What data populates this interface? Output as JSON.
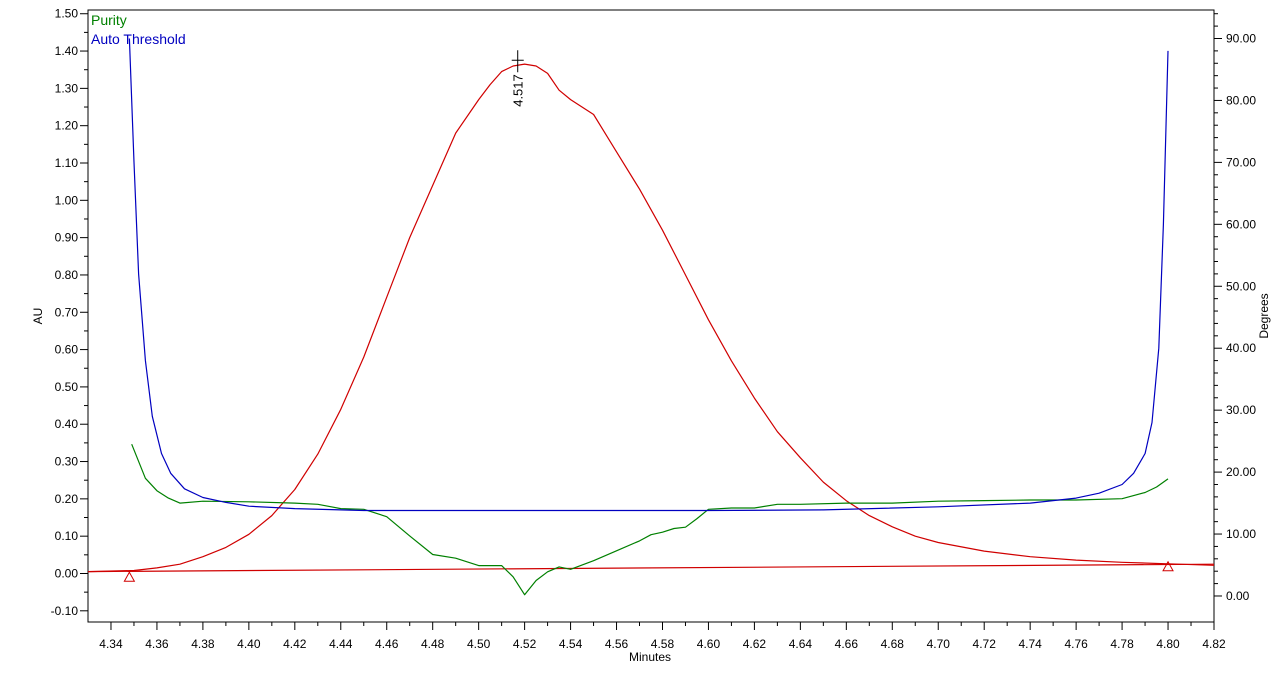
{
  "chart_data": {
    "type": "line",
    "xlabel": "Minutes",
    "ylabel": "AU",
    "y2label": "Degrees",
    "xlim": [
      4.33,
      4.82
    ],
    "ylim": [
      -0.13,
      1.51
    ],
    "y2lim": [
      -4.2,
      94.6
    ],
    "grid": false,
    "legend_position": "top-left",
    "x_ticks": [
      "4.34",
      "4.36",
      "4.38",
      "4.40",
      "4.42",
      "4.44",
      "4.46",
      "4.48",
      "4.50",
      "4.52",
      "4.54",
      "4.56",
      "4.58",
      "4.60",
      "4.62",
      "4.64",
      "4.66",
      "4.68",
      "4.70",
      "4.72",
      "4.74",
      "4.76",
      "4.78",
      "4.80",
      "4.82"
    ],
    "y_ticks": [
      "-0.10",
      "0.00",
      "0.10",
      "0.20",
      "0.30",
      "0.40",
      "0.50",
      "0.60",
      "0.70",
      "0.80",
      "0.90",
      "1.00",
      "1.10",
      "1.20",
      "1.30",
      "1.40",
      "1.50"
    ],
    "y2_ticks": [
      "0.00",
      "10.00",
      "20.00",
      "30.00",
      "40.00",
      "50.00",
      "60.00",
      "70.00",
      "80.00",
      "90.00"
    ],
    "legend": [
      {
        "label": "Purity",
        "color": "#008000"
      },
      {
        "label": "Auto Threshold",
        "color": "#0000c0"
      }
    ],
    "series": [
      {
        "axis": "left",
        "color": "#d00000",
        "x": [
          4.33,
          4.35,
          4.36,
          4.37,
          4.38,
          4.39,
          4.4,
          4.41,
          4.42,
          4.43,
          4.44,
          4.45,
          4.46,
          4.47,
          4.48,
          4.49,
          4.5,
          4.505,
          4.51,
          4.515,
          4.52,
          4.525,
          4.53,
          4.535,
          4.54,
          4.55,
          4.56,
          4.57,
          4.58,
          4.59,
          4.6,
          4.61,
          4.62,
          4.63,
          4.64,
          4.65,
          4.66,
          4.67,
          4.68,
          4.69,
          4.7,
          4.72,
          4.74,
          4.76,
          4.78,
          4.8,
          4.82
        ],
        "y": [
          0.005,
          0.008,
          0.015,
          0.025,
          0.045,
          0.07,
          0.105,
          0.155,
          0.225,
          0.32,
          0.44,
          0.58,
          0.74,
          0.9,
          1.04,
          1.18,
          1.27,
          1.31,
          1.345,
          1.36,
          1.365,
          1.36,
          1.34,
          1.295,
          1.27,
          1.23,
          1.13,
          1.03,
          0.92,
          0.8,
          0.68,
          0.57,
          0.47,
          0.38,
          0.31,
          0.245,
          0.195,
          0.155,
          0.125,
          0.1,
          0.083,
          0.06,
          0.045,
          0.036,
          0.03,
          0.026,
          0.022
        ]
      },
      {
        "axis": "left",
        "color": "#d00000",
        "x": [
          4.33,
          4.82
        ],
        "y": [
          0.005,
          0.025
        ]
      },
      {
        "axis": "right",
        "color": "#008000",
        "name": "Purity",
        "x": [
          4.349,
          4.355,
          4.36,
          4.365,
          4.37,
          4.38,
          4.4,
          4.42,
          4.43,
          4.44,
          4.45,
          4.46,
          4.47,
          4.48,
          4.49,
          4.5,
          4.505,
          4.51,
          4.515,
          4.52,
          4.525,
          4.53,
          4.535,
          4.54,
          4.55,
          4.56,
          4.57,
          4.575,
          4.58,
          4.585,
          4.59,
          4.595,
          4.6,
          4.61,
          4.62,
          4.63,
          4.64,
          4.66,
          4.68,
          4.7,
          4.72,
          4.74,
          4.76,
          4.78,
          4.79,
          4.795,
          4.8
        ],
        "y": [
          24.5,
          19.0,
          17.0,
          15.8,
          15.0,
          15.3,
          15.2,
          15.0,
          14.8,
          14.1,
          14.0,
          12.8,
          9.7,
          6.7,
          6.1,
          4.9,
          4.9,
          4.9,
          3.1,
          0.2,
          2.5,
          3.9,
          4.7,
          4.3,
          5.7,
          7.3,
          8.9,
          9.9,
          10.3,
          10.9,
          11.1,
          12.5,
          14.0,
          14.2,
          14.2,
          14.8,
          14.8,
          15.0,
          15.0,
          15.3,
          15.4,
          15.5,
          15.5,
          15.7,
          16.7,
          17.6,
          18.9
        ]
      },
      {
        "axis": "right",
        "color": "#0000c0",
        "name": "Auto Threshold",
        "x": [
          4.348,
          4.35,
          4.352,
          4.355,
          4.358,
          4.362,
          4.366,
          4.372,
          4.38,
          4.39,
          4.4,
          4.42,
          4.45,
          4.5,
          4.55,
          4.6,
          4.65,
          4.7,
          4.74,
          4.76,
          4.77,
          4.78,
          4.785,
          4.79,
          4.793,
          4.796,
          4.798,
          4.8
        ],
        "y": [
          90.0,
          70.0,
          52.0,
          38.0,
          29.0,
          23.0,
          19.8,
          17.3,
          15.9,
          15.1,
          14.5,
          14.1,
          13.8,
          13.8,
          13.8,
          13.8,
          13.9,
          14.4,
          15.0,
          15.8,
          16.6,
          18.0,
          19.8,
          23.0,
          28.0,
          40.0,
          60.0,
          88.0
        ]
      }
    ],
    "markers": [
      {
        "x": 4.348,
        "y": -0.01
      },
      {
        "x": 4.8,
        "y": 0.018
      }
    ],
    "peak": {
      "x": 4.517,
      "y": 1.37,
      "label": "4.517"
    }
  }
}
